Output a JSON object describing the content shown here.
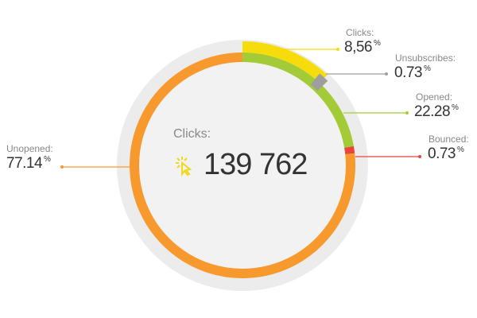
{
  "chart_data": {
    "type": "pie",
    "variant": "donut",
    "center": {
      "label": "Clicks:",
      "value": "139 762",
      "icon": "click-cursor-icon"
    },
    "segments": [
      {
        "label": "Clicks:",
        "value": 8.56,
        "display": "8,56",
        "color": "#f7dc0c",
        "ring": "outer"
      },
      {
        "label": "Unsubscribes:",
        "value": 0.73,
        "display": "0.73",
        "color": "#9e9e9e",
        "ring": "inner"
      },
      {
        "label": "Opened:",
        "value": 22.28,
        "display": "22.28",
        "color": "#a3cb38",
        "ring": "inner"
      },
      {
        "label": "Bounced:",
        "value": 0.73,
        "display": "0.73",
        "color": "#e8453c",
        "ring": "inner"
      },
      {
        "label": "Unopened:",
        "value": 77.14,
        "display": "77.14",
        "color": "#f7992c",
        "ring": "inner"
      }
    ],
    "unit": "%"
  }
}
